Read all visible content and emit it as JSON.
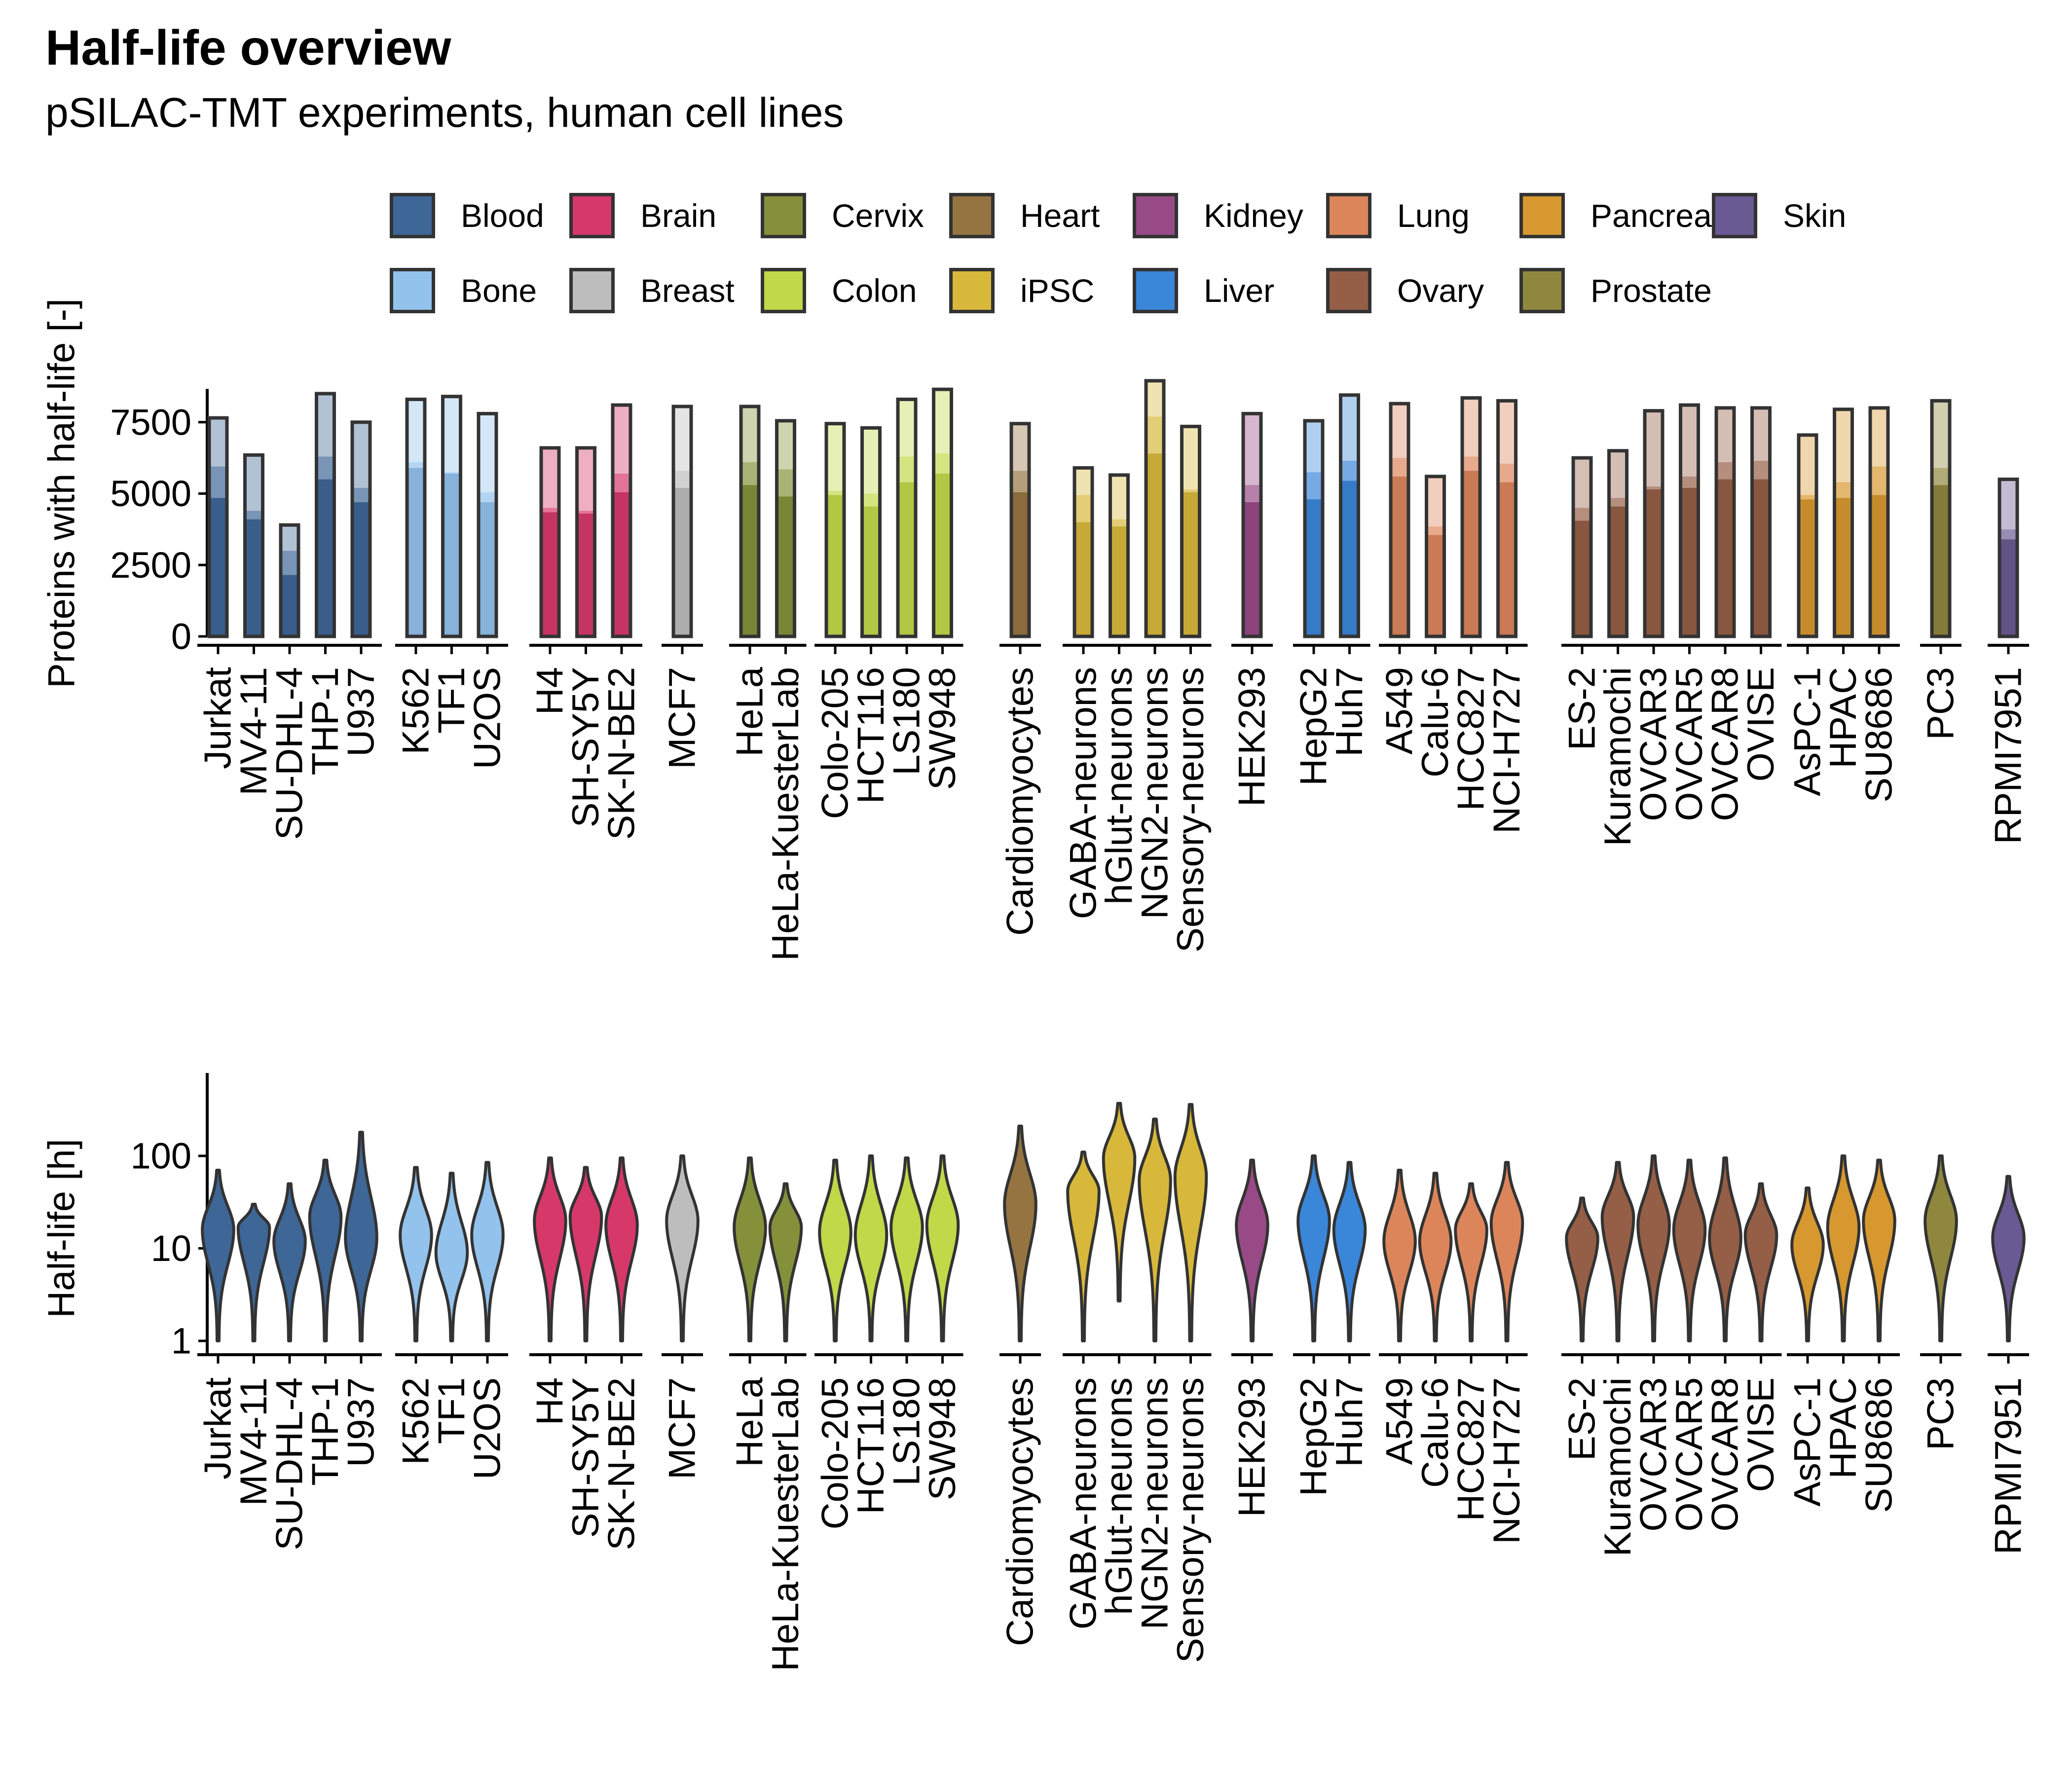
{
  "title": "Half-life overview",
  "subtitle": "pSILAC-TMT experiments, human cell lines",
  "colors": {
    "Blood": "#3e6697",
    "Bone": "#93c2ec",
    "Brain": "#d6386a",
    "Breast": "#bdbdbd",
    "Cervix": "#85913a",
    "Colon": "#c1d849",
    "Heart": "#957441",
    "iPSC": "#d7b83b",
    "Kidney": "#984a86",
    "Liver": "#3a86d9",
    "Lung": "#dc855b",
    "Ovary": "#955e46",
    "Pancreas": "#d7982f",
    "Prostate": "#8f873d",
    "Skin": "#6a5a93"
  },
  "chart_data": [
    {
      "type": "bar",
      "ylabel": "Proteins with half-life [-]",
      "ylim": [
        0,
        9500
      ],
      "yticks": [
        "0",
        "2500",
        "5000",
        "7500"
      ],
      "ytick_values": [
        0,
        2500,
        5000,
        7500
      ],
      "legend": {
        "position": "top",
        "entries": [
          "Blood",
          "Brain",
          "Cervix",
          "Heart",
          "Kidney",
          "Lung",
          "Pancreas",
          "Skin",
          "Bone",
          "Breast",
          "Colon",
          "iPSC",
          "Liver",
          "Ovary",
          "Prostate"
        ]
      },
      "groups": [
        {
          "tissue": "Blood",
          "lines": [
            {
              "name": "Jurkat",
              "values": [
                4850,
                5950,
                7650
              ]
            },
            {
              "name": "MV4-11",
              "values": [
                4100,
                4400,
                6350
              ]
            },
            {
              "name": "SU-DHL-4",
              "values": [
                2150,
                3000,
                3900
              ]
            },
            {
              "name": "THP-1",
              "values": [
                5500,
                6300,
                8500
              ]
            },
            {
              "name": "U937",
              "values": [
                4700,
                5200,
                7500
              ]
            }
          ]
        },
        {
          "tissue": "Bone",
          "lines": [
            {
              "name": "K562",
              "values": [
                5900,
                6100,
                8300
              ]
            },
            {
              "name": "TF1",
              "values": [
                5700,
                5750,
                8400
              ]
            },
            {
              "name": "U2OS",
              "values": [
                4700,
                5050,
                7800
              ]
            }
          ]
        },
        {
          "tissue": "Brain",
          "lines": [
            {
              "name": "H4",
              "values": [
                4350,
                4500,
                6600
              ]
            },
            {
              "name": "SH-SY5Y",
              "values": [
                4300,
                4400,
                6600
              ]
            },
            {
              "name": "SK-N-BE2",
              "values": [
                5050,
                5700,
                8100
              ]
            }
          ]
        },
        {
          "tissue": "Breast",
          "lines": [
            {
              "name": "MCF7",
              "values": [
                5200,
                5800,
                8050
              ]
            }
          ]
        },
        {
          "tissue": "Cervix",
          "lines": [
            {
              "name": "HeLa",
              "values": [
                5300,
                6100,
                8050
              ]
            },
            {
              "name": "HeLa-KuesterLab",
              "values": [
                4900,
                5850,
                7550
              ]
            }
          ]
        },
        {
          "tissue": "Colon",
          "lines": [
            {
              "name": "Colo-205",
              "values": [
                4950,
                5100,
                7450
              ]
            },
            {
              "name": "HCT116",
              "values": [
                4550,
                5000,
                7300
              ]
            },
            {
              "name": "LS180",
              "values": [
                5400,
                6300,
                8300
              ]
            },
            {
              "name": "SW948",
              "values": [
                5700,
                6400,
                8650
              ]
            }
          ]
        },
        {
          "tissue": "Heart",
          "lines": [
            {
              "name": "Cardiomyocytes",
              "values": [
                5050,
                5800,
                7450
              ]
            }
          ]
        },
        {
          "tissue": "iPSC",
          "lines": [
            {
              "name": "GABA-neurons",
              "values": [
                4000,
                4950,
                5900
              ]
            },
            {
              "name": "hGlut-neurons",
              "values": [
                3850,
                4100,
                5650
              ]
            },
            {
              "name": "NGN2-neurons",
              "values": [
                6400,
                7700,
                8950
              ]
            },
            {
              "name": "Sensory-neurons",
              "values": [
                5050,
                5150,
                7350
              ]
            }
          ]
        },
        {
          "tissue": "Kidney",
          "lines": [
            {
              "name": "HEK293",
              "values": [
                4700,
                5300,
                7800
              ]
            }
          ]
        },
        {
          "tissue": "Liver",
          "lines": [
            {
              "name": "HepG2",
              "values": [
                4800,
                5750,
                7550
              ]
            },
            {
              "name": "Huh7",
              "values": [
                5450,
                6150,
                8450
              ]
            }
          ]
        },
        {
          "tissue": "Lung",
          "lines": [
            {
              "name": "A549",
              "values": [
                5600,
                6250,
                8150
              ]
            },
            {
              "name": "Calu-6",
              "values": [
                3550,
                3850,
                5600
              ]
            },
            {
              "name": "HCC827",
              "values": [
                5800,
                6300,
                8350
              ]
            },
            {
              "name": "NCI-H727",
              "values": [
                5400,
                6050,
                8250
              ]
            }
          ]
        },
        {
          "tissue": "Ovary",
          "lines": [
            {
              "name": "ES-2",
              "values": [
                4050,
                4500,
                6250
              ]
            },
            {
              "name": "Kuramochi",
              "values": [
                4550,
                4850,
                6500
              ]
            },
            {
              "name": "OVCAR3",
              "values": [
                5150,
                5250,
                7900
              ]
            },
            {
              "name": "OVCAR5",
              "values": [
                5200,
                5600,
                8100
              ]
            },
            {
              "name": "OVCAR8",
              "values": [
                5500,
                6100,
                8000
              ]
            },
            {
              "name": "OVISE",
              "values": [
                5500,
                6150,
                8000
              ]
            }
          ]
        },
        {
          "tissue": "Pancreas",
          "lines": [
            {
              "name": "AsPC-1",
              "values": [
                4800,
                4950,
                7050
              ]
            },
            {
              "name": "HPAC",
              "values": [
                4850,
                5400,
                7950
              ]
            },
            {
              "name": "SU8686",
              "values": [
                4950,
                5950,
                8000
              ]
            }
          ]
        },
        {
          "tissue": "Prostate",
          "lines": [
            {
              "name": "PC3",
              "values": [
                5300,
                5900,
                8250
              ]
            }
          ]
        },
        {
          "tissue": "Skin",
          "lines": [
            {
              "name": "RPMI7951",
              "values": [
                3400,
                3750,
                5500
              ]
            }
          ]
        }
      ]
    },
    {
      "type": "violin",
      "ylabel": "Half-life [h]",
      "yscale": "log10",
      "ylim": [
        0.8,
        800
      ],
      "yticks": [
        "1",
        "10",
        "100"
      ],
      "ytick_values": [
        1,
        10,
        100
      ],
      "medians_h": [
        {
          "name": "Jurkat",
          "median": 16,
          "min": 1,
          "max": 70
        },
        {
          "name": "MV4-11",
          "median": 17,
          "min": 1,
          "max": 30
        },
        {
          "name": "SU-DHL-4",
          "median": 12,
          "min": 1,
          "max": 50
        },
        {
          "name": "THP-1",
          "median": 22,
          "min": 1,
          "max": 90
        },
        {
          "name": "U937",
          "median": 13,
          "min": 1,
          "max": 180
        },
        {
          "name": "K562",
          "median": 14,
          "min": 1,
          "max": 75
        },
        {
          "name": "TF1",
          "median": 9,
          "min": 1,
          "max": 65
        },
        {
          "name": "U2OS",
          "median": 14,
          "min": 1,
          "max": 85
        },
        {
          "name": "H4",
          "median": 20,
          "min": 1,
          "max": 95
        },
        {
          "name": "SH-SY5Y",
          "median": 22,
          "min": 1,
          "max": 75
        },
        {
          "name": "SK-N-BE2",
          "median": 18,
          "min": 1,
          "max": 95
        },
        {
          "name": "MCF7",
          "median": 20,
          "min": 1,
          "max": 100
        },
        {
          "name": "HeLa",
          "median": 17,
          "min": 1,
          "max": 95
        },
        {
          "name": "HeLa-KuesterLab",
          "median": 17,
          "min": 1,
          "max": 50
        },
        {
          "name": "Colo-205",
          "median": 15,
          "min": 1,
          "max": 90
        },
        {
          "name": "HCT116",
          "median": 14,
          "min": 1,
          "max": 100
        },
        {
          "name": "LS180",
          "median": 17,
          "min": 1,
          "max": 95
        },
        {
          "name": "SW948",
          "median": 18,
          "min": 1,
          "max": 100
        },
        {
          "name": "Cardiomyocytes",
          "median": 30,
          "min": 1,
          "max": 210
        },
        {
          "name": "GABA-neurons",
          "median": 42,
          "min": 1,
          "max": 110
        },
        {
          "name": "hGlut-neurons",
          "median": 95,
          "min": 2.7,
          "max": 370
        },
        {
          "name": "NGN2-neurons",
          "median": 55,
          "min": 1,
          "max": 250
        },
        {
          "name": "Sensory-neurons",
          "median": 60,
          "min": 1,
          "max": 360
        },
        {
          "name": "HEK293",
          "median": 18,
          "min": 1,
          "max": 90
        },
        {
          "name": "HepG2",
          "median": 20,
          "min": 1,
          "max": 100
        },
        {
          "name": "Huh7",
          "median": 16,
          "min": 1,
          "max": 85
        },
        {
          "name": "A549",
          "median": 12,
          "min": 1,
          "max": 70
        },
        {
          "name": "Calu-6",
          "median": 12,
          "min": 1,
          "max": 65
        },
        {
          "name": "HCC827",
          "median": 16,
          "min": 1,
          "max": 50
        },
        {
          "name": "NCI-H727",
          "median": 19,
          "min": 1,
          "max": 85
        },
        {
          "name": "ES-2",
          "median": 13,
          "min": 1,
          "max": 35
        },
        {
          "name": "Kuramochi",
          "median": 22,
          "min": 1,
          "max": 85
        },
        {
          "name": "OVCAR3",
          "median": 18,
          "min": 1,
          "max": 100
        },
        {
          "name": "OVCAR5",
          "median": 16,
          "min": 1,
          "max": 90
        },
        {
          "name": "OVCAR8",
          "median": 13,
          "min": 1,
          "max": 95
        },
        {
          "name": "OVISE",
          "median": 14,
          "min": 1,
          "max": 50
        },
        {
          "name": "AsPC-1",
          "median": 11,
          "min": 1,
          "max": 45
        },
        {
          "name": "HPAC",
          "median": 17,
          "min": 1,
          "max": 100
        },
        {
          "name": "SU8686",
          "median": 20,
          "min": 1,
          "max": 90
        },
        {
          "name": "PC3",
          "median": 20,
          "min": 1,
          "max": 100
        },
        {
          "name": "RPMI7951",
          "median": 13,
          "min": 1,
          "max": 60
        }
      ]
    }
  ]
}
